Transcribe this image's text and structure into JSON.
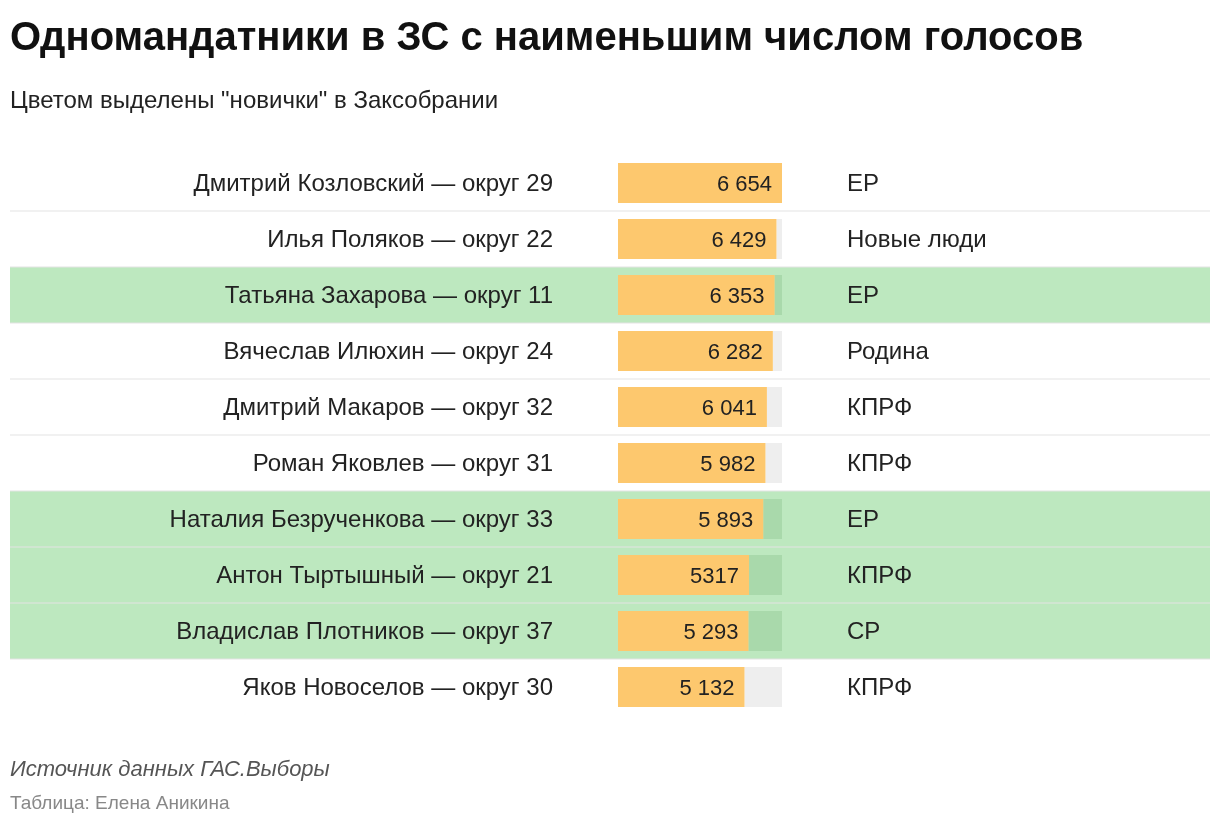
{
  "chart_data": {
    "type": "bar",
    "orientation": "horizontal",
    "title": "Одномандатники в ЗС с наименьшим числом голосов",
    "subtitle": "Цветом выделены \"новички\" в Заксобрании",
    "categories": [
      "Дмитрий Козловский — округ 29",
      "Илья Поляков — округ 22",
      "Татьяна Захарова — округ 11",
      "Вячеслав Илюхин — округ 24",
      "Дмитрий Макаров — округ 32",
      "Роман Яковлев — округ 31",
      "Наталия Безрученкова — округ 33",
      "Антон Тыртышный — округ 21",
      "Владислав Плотников — округ 37",
      "Яков Новоселов — округ 30"
    ],
    "values": [
      6654,
      6429,
      6353,
      6282,
      6041,
      5982,
      5893,
      5317,
      5293,
      5132
    ],
    "value_labels": [
      "6 654",
      "6 429",
      "6 353",
      "6 282",
      "6 041",
      "5 982",
      "5 893",
      "5317",
      "5 293",
      "5 132"
    ],
    "color": "#fdc86e",
    "xlim": [
      0,
      6654
    ],
    "tick_labels": "y",
    "bands": [
      {
        "axis": "y",
        "from": "Татьяна Захарова — округ 11",
        "to": "Татьяна Захарова — округ 11",
        "color": "#bde8bf"
      },
      {
        "axis": "y",
        "from": "Наталия Безрученкова — округ 33",
        "to": "Владислав Плотников — округ 37",
        "color": "#bde8bf"
      }
    ],
    "y2_categories": [
      "ЕР",
      "Новые люди",
      "ЕР",
      "Родина",
      "КПРФ",
      "КПРФ",
      "ЕР",
      "КПРФ",
      "СР",
      "КПРФ"
    ],
    "annotations": [
      "Источник данных ГАС.Выборы",
      "Таблица: Елена Аникина"
    ]
  }
}
